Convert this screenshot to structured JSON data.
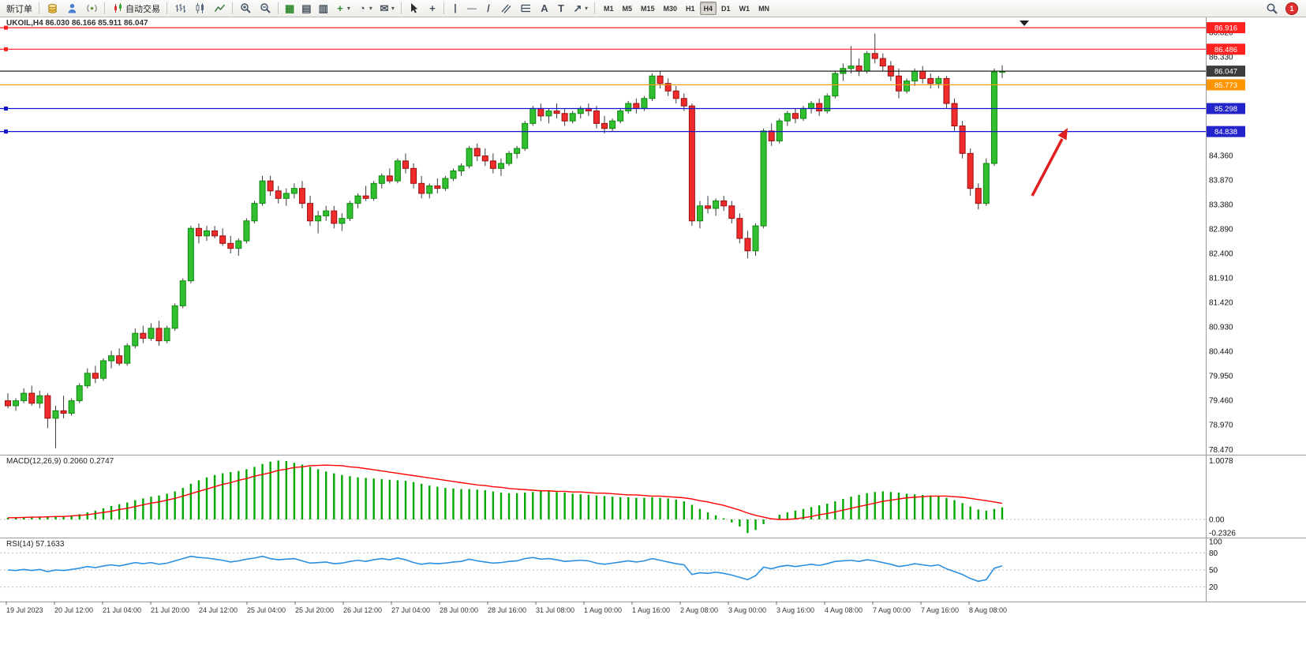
{
  "toolbar": {
    "new_order_label": "新订单",
    "auto_trading_label": "自动交易",
    "timeframes": [
      "M1",
      "M5",
      "M15",
      "M30",
      "H1",
      "H4",
      "D1",
      "W1",
      "MN"
    ],
    "active_timeframe": "H4",
    "notification_count": "1"
  },
  "icons": {
    "tile": "▦",
    "layout_columns": "▤",
    "layout_rows": "▥",
    "add_plus": "+",
    "clock": "◔",
    "mail": "✉",
    "caret": "▾",
    "crosshair": "+",
    "vline": "|",
    "hline": "—",
    "trendline": "/",
    "text_tool": "A",
    "label_tool": "T",
    "arrow_tool": "↗"
  },
  "chart_data": {
    "type": "candlestick",
    "symbol": "UKOIL",
    "period": "H4",
    "symbol_readout": "UKOIL,H4 86.030 86.166 85.911 86.047",
    "ohlc": {
      "open": 86.03,
      "high": 86.166,
      "low": 85.911,
      "close": 86.047
    },
    "colors": {
      "bull": "#2fbf2f",
      "bull_border": "#118811",
      "bear": "#ef2b2b",
      "bear_border": "#9c0f0f",
      "wick": "#3a3a3a",
      "macd_hist": "#00a800",
      "macd_signal": "#ff0000",
      "rsi": "#2a8fe0",
      "arrow": "#e02020"
    },
    "price_axis_ticks": [
      86.82,
      86.33,
      84.36,
      83.87,
      83.38,
      82.89,
      82.4,
      81.91,
      81.42,
      80.93,
      80.44,
      79.95,
      79.46,
      78.97,
      78.47
    ],
    "hlines": [
      {
        "label": "86.916",
        "price": 86.916,
        "color": "#ff2020",
        "badge": "#ff2020",
        "marker": true
      },
      {
        "label": "86.486",
        "price": 86.486,
        "color": "#ff2020",
        "badge": "#ff2020",
        "marker": true
      },
      {
        "label": "86.047",
        "price": 86.047,
        "color": "#222222",
        "badge": "#3c3c3c",
        "marker": false
      },
      {
        "label": "85.773",
        "price": 85.773,
        "color": "#ff9500",
        "badge": "#ff9500",
        "marker": false
      },
      {
        "label": "85.298",
        "price": 85.298,
        "color": "#1414cc",
        "badge": "#2424cc",
        "marker": true
      },
      {
        "label": "84.838",
        "price": 84.838,
        "color": "#1414cc",
        "badge": "#2424cc",
        "marker": true
      }
    ],
    "candles": [
      [
        79.45,
        79.6,
        79.3,
        79.35
      ],
      [
        79.35,
        79.5,
        79.25,
        79.45
      ],
      [
        79.45,
        79.7,
        79.4,
        79.6
      ],
      [
        79.6,
        79.75,
        79.35,
        79.4
      ],
      [
        79.4,
        79.65,
        79.3,
        79.55
      ],
      [
        79.55,
        79.6,
        78.9,
        79.1
      ],
      [
        79.1,
        79.35,
        78.5,
        79.25
      ],
      [
        79.25,
        79.55,
        79.1,
        79.2
      ],
      [
        79.2,
        79.5,
        79.15,
        79.45
      ],
      [
        79.45,
        79.8,
        79.4,
        79.75
      ],
      [
        79.75,
        80.1,
        79.7,
        80.0
      ],
      [
        80.0,
        80.15,
        79.8,
        79.9
      ],
      [
        79.9,
        80.3,
        79.85,
        80.25
      ],
      [
        80.25,
        80.45,
        80.1,
        80.35
      ],
      [
        80.35,
        80.5,
        80.15,
        80.2
      ],
      [
        80.2,
        80.6,
        80.15,
        80.55
      ],
      [
        80.55,
        80.9,
        80.5,
        80.8
      ],
      [
        80.8,
        80.95,
        80.6,
        80.7
      ],
      [
        80.7,
        81.0,
        80.65,
        80.9
      ],
      [
        80.9,
        81.05,
        80.55,
        80.65
      ],
      [
        80.65,
        80.95,
        80.6,
        80.9
      ],
      [
        80.9,
        81.4,
        80.85,
        81.35
      ],
      [
        81.35,
        81.9,
        81.3,
        81.85
      ],
      [
        81.85,
        82.95,
        81.8,
        82.9
      ],
      [
        82.9,
        83.0,
        82.6,
        82.75
      ],
      [
        82.75,
        82.95,
        82.65,
        82.85
      ],
      [
        82.85,
        82.95,
        82.7,
        82.75
      ],
      [
        82.75,
        82.9,
        82.55,
        82.6
      ],
      [
        82.6,
        82.75,
        82.4,
        82.5
      ],
      [
        82.5,
        82.7,
        82.35,
        82.65
      ],
      [
        82.65,
        83.1,
        82.6,
        83.05
      ],
      [
        83.05,
        83.45,
        83.0,
        83.4
      ],
      [
        83.4,
        83.95,
        83.35,
        83.85
      ],
      [
        83.85,
        83.95,
        83.55,
        83.65
      ],
      [
        83.65,
        83.75,
        83.4,
        83.5
      ],
      [
        83.5,
        83.7,
        83.35,
        83.6
      ],
      [
        83.6,
        83.8,
        83.5,
        83.7
      ],
      [
        83.7,
        83.85,
        83.3,
        83.4
      ],
      [
        83.4,
        83.55,
        82.95,
        83.05
      ],
      [
        83.05,
        83.25,
        82.8,
        83.15
      ],
      [
        83.15,
        83.35,
        83.05,
        83.25
      ],
      [
        83.25,
        83.35,
        82.9,
        83.0
      ],
      [
        83.0,
        83.2,
        82.85,
        83.1
      ],
      [
        83.1,
        83.45,
        83.05,
        83.4
      ],
      [
        83.4,
        83.6,
        83.3,
        83.55
      ],
      [
        83.55,
        83.75,
        83.45,
        83.5
      ],
      [
        83.5,
        83.85,
        83.45,
        83.8
      ],
      [
        83.8,
        84.0,
        83.7,
        83.95
      ],
      [
        83.95,
        84.1,
        83.8,
        83.85
      ],
      [
        83.85,
        84.3,
        83.8,
        84.25
      ],
      [
        84.25,
        84.4,
        84.0,
        84.1
      ],
      [
        84.1,
        84.2,
        83.7,
        83.8
      ],
      [
        83.8,
        83.95,
        83.5,
        83.6
      ],
      [
        83.6,
        83.8,
        83.5,
        83.75
      ],
      [
        83.75,
        83.9,
        83.6,
        83.7
      ],
      [
        83.7,
        83.95,
        83.65,
        83.9
      ],
      [
        83.9,
        84.1,
        83.85,
        84.05
      ],
      [
        84.05,
        84.2,
        83.95,
        84.15
      ],
      [
        84.15,
        84.55,
        84.1,
        84.5
      ],
      [
        84.5,
        84.6,
        84.25,
        84.35
      ],
      [
        84.35,
        84.5,
        84.15,
        84.25
      ],
      [
        84.25,
        84.4,
        84.0,
        84.1
      ],
      [
        84.1,
        84.3,
        83.95,
        84.2
      ],
      [
        84.2,
        84.45,
        84.15,
        84.4
      ],
      [
        84.4,
        84.55,
        84.3,
        84.5
      ],
      [
        84.5,
        85.05,
        84.45,
        85.0
      ],
      [
        85.0,
        85.35,
        84.95,
        85.3
      ],
      [
        85.3,
        85.4,
        85.05,
        85.15
      ],
      [
        85.15,
        85.3,
        85.0,
        85.25
      ],
      [
        85.25,
        85.4,
        85.1,
        85.2
      ],
      [
        85.2,
        85.3,
        84.95,
        85.05
      ],
      [
        85.05,
        85.25,
        85.0,
        85.2
      ],
      [
        85.2,
        85.35,
        85.1,
        85.3
      ],
      [
        85.3,
        85.4,
        85.15,
        85.25
      ],
      [
        85.25,
        85.35,
        84.9,
        85.0
      ],
      [
        85.0,
        85.15,
        84.8,
        84.9
      ],
      [
        84.9,
        85.1,
        84.85,
        85.05
      ],
      [
        85.05,
        85.3,
        85.0,
        85.25
      ],
      [
        85.25,
        85.45,
        85.2,
        85.4
      ],
      [
        85.4,
        85.5,
        85.2,
        85.3
      ],
      [
        85.3,
        85.55,
        85.25,
        85.5
      ],
      [
        85.5,
        86.0,
        85.45,
        85.95
      ],
      [
        85.95,
        86.05,
        85.7,
        85.8
      ],
      [
        85.8,
        85.9,
        85.55,
        85.65
      ],
      [
        85.65,
        85.75,
        85.4,
        85.5
      ],
      [
        85.5,
        85.6,
        85.25,
        85.35
      ],
      [
        85.35,
        85.4,
        82.95,
        83.05
      ],
      [
        83.05,
        83.45,
        82.9,
        83.35
      ],
      [
        83.35,
        83.55,
        83.2,
        83.3
      ],
      [
        83.3,
        83.5,
        83.15,
        83.45
      ],
      [
        83.45,
        83.55,
        83.25,
        83.35
      ],
      [
        83.35,
        83.45,
        83.0,
        83.1
      ],
      [
        83.1,
        83.2,
        82.6,
        82.7
      ],
      [
        82.7,
        82.85,
        82.3,
        82.45
      ],
      [
        82.45,
        83.0,
        82.35,
        82.95
      ],
      [
        82.95,
        84.9,
        82.9,
        84.85
      ],
      [
        84.85,
        85.0,
        84.55,
        84.65
      ],
      [
        84.65,
        85.1,
        84.6,
        85.05
      ],
      [
        85.05,
        85.25,
        84.95,
        85.2
      ],
      [
        85.2,
        85.3,
        85.0,
        85.1
      ],
      [
        85.1,
        85.35,
        85.05,
        85.3
      ],
      [
        85.3,
        85.45,
        85.2,
        85.4
      ],
      [
        85.4,
        85.5,
        85.15,
        85.25
      ],
      [
        85.25,
        85.6,
        85.2,
        85.55
      ],
      [
        85.55,
        86.05,
        85.5,
        86.0
      ],
      [
        86.0,
        86.2,
        85.85,
        86.1
      ],
      [
        86.1,
        86.55,
        86.0,
        86.15
      ],
      [
        86.15,
        86.3,
        85.95,
        86.05
      ],
      [
        86.05,
        86.45,
        86.0,
        86.4
      ],
      [
        86.4,
        86.8,
        86.2,
        86.3
      ],
      [
        86.3,
        86.4,
        86.05,
        86.15
      ],
      [
        86.15,
        86.25,
        85.85,
        85.95
      ],
      [
        85.95,
        86.1,
        85.5,
        85.65
      ],
      [
        85.65,
        85.9,
        85.6,
        85.85
      ],
      [
        85.85,
        86.1,
        85.75,
        86.05
      ],
      [
        86.05,
        86.15,
        85.8,
        85.9
      ],
      [
        85.9,
        86.0,
        85.7,
        85.8
      ],
      [
        85.8,
        85.95,
        85.7,
        85.9
      ],
      [
        85.9,
        85.95,
        85.3,
        85.4
      ],
      [
        85.4,
        85.5,
        84.85,
        84.95
      ],
      [
        84.95,
        85.05,
        84.3,
        84.4
      ],
      [
        84.4,
        84.5,
        83.55,
        83.7
      ],
      [
        83.7,
        83.8,
        83.28,
        83.4
      ],
      [
        83.4,
        84.3,
        83.35,
        84.2
      ],
      [
        84.2,
        86.1,
        84.15,
        86.03
      ],
      [
        86.03,
        86.166,
        85.911,
        86.047
      ]
    ],
    "macd": {
      "label": "MACD(12,26,9) 0.2060 0.2747",
      "value": 0.206,
      "signal_value": 0.2747,
      "axis_ticks": [
        "1.0078",
        "0.00",
        "-0.2326"
      ],
      "histogram": [
        0.03,
        0.03,
        0.04,
        0.04,
        0.05,
        0.04,
        0.05,
        0.06,
        0.07,
        0.09,
        0.12,
        0.15,
        0.19,
        0.23,
        0.26,
        0.29,
        0.33,
        0.36,
        0.39,
        0.41,
        0.44,
        0.48,
        0.54,
        0.61,
        0.67,
        0.72,
        0.76,
        0.79,
        0.81,
        0.83,
        0.86,
        0.9,
        0.95,
        0.99,
        1.0078,
        1.0,
        0.97,
        0.94,
        0.9,
        0.86,
        0.82,
        0.79,
        0.76,
        0.74,
        0.72,
        0.71,
        0.7,
        0.69,
        0.68,
        0.67,
        0.66,
        0.64,
        0.61,
        0.58,
        0.56,
        0.54,
        0.53,
        0.52,
        0.52,
        0.51,
        0.5,
        0.48,
        0.46,
        0.45,
        0.45,
        0.46,
        0.47,
        0.48,
        0.48,
        0.47,
        0.46,
        0.44,
        0.43,
        0.42,
        0.41,
        0.4,
        0.39,
        0.38,
        0.38,
        0.37,
        0.37,
        0.38,
        0.37,
        0.36,
        0.34,
        0.31,
        0.25,
        0.18,
        0.12,
        0.07,
        0.02,
        -0.05,
        -0.12,
        -0.2326,
        -0.18,
        -0.08,
        0.02,
        0.08,
        0.12,
        0.15,
        0.18,
        0.21,
        0.24,
        0.27,
        0.31,
        0.35,
        0.39,
        0.42,
        0.45,
        0.47,
        0.48,
        0.47,
        0.46,
        0.44,
        0.43,
        0.42,
        0.41,
        0.4,
        0.37,
        0.33,
        0.28,
        0.22,
        0.17,
        0.15,
        0.18,
        0.206
      ],
      "signal": [
        0.03,
        0.03,
        0.035,
        0.04,
        0.04,
        0.045,
        0.05,
        0.05,
        0.06,
        0.07,
        0.08,
        0.1,
        0.12,
        0.14,
        0.17,
        0.19,
        0.22,
        0.25,
        0.28,
        0.3,
        0.33,
        0.36,
        0.4,
        0.44,
        0.48,
        0.52,
        0.56,
        0.6,
        0.63,
        0.67,
        0.7,
        0.74,
        0.77,
        0.8,
        0.84,
        0.86,
        0.89,
        0.9,
        0.92,
        0.925,
        0.93,
        0.925,
        0.92,
        0.9,
        0.89,
        0.87,
        0.85,
        0.83,
        0.81,
        0.79,
        0.77,
        0.75,
        0.73,
        0.71,
        0.69,
        0.67,
        0.65,
        0.63,
        0.61,
        0.59,
        0.58,
        0.56,
        0.55,
        0.53,
        0.52,
        0.51,
        0.5,
        0.49,
        0.49,
        0.48,
        0.48,
        0.47,
        0.47,
        0.46,
        0.45,
        0.45,
        0.44,
        0.43,
        0.42,
        0.42,
        0.41,
        0.4,
        0.4,
        0.39,
        0.38,
        0.37,
        0.35,
        0.32,
        0.3,
        0.27,
        0.24,
        0.2,
        0.16,
        0.11,
        0.07,
        0.04,
        0.01,
        0.0,
        0.0,
        0.01,
        0.03,
        0.05,
        0.08,
        0.1,
        0.13,
        0.16,
        0.19,
        0.22,
        0.25,
        0.28,
        0.31,
        0.33,
        0.35,
        0.37,
        0.38,
        0.39,
        0.4,
        0.4,
        0.4,
        0.39,
        0.38,
        0.36,
        0.34,
        0.32,
        0.3,
        0.2747
      ]
    },
    "rsi": {
      "label": "RSI(14) 57.1633",
      "value": 57.1633,
      "levels": [
        80,
        50,
        20
      ],
      "axis_ticks": [
        "100",
        "80",
        "50",
        "20"
      ],
      "values": [
        50,
        49,
        51,
        49,
        51,
        47,
        50,
        49,
        51,
        53,
        56,
        54,
        57,
        59,
        57,
        60,
        63,
        61,
        63,
        60,
        62,
        66,
        70,
        74,
        72,
        71,
        69,
        67,
        64,
        66,
        69,
        71,
        74,
        70,
        68,
        69,
        70,
        66,
        62,
        63,
        64,
        61,
        62,
        65,
        67,
        65,
        68,
        70,
        68,
        71,
        68,
        63,
        60,
        62,
        61,
        62,
        64,
        65,
        69,
        66,
        64,
        62,
        63,
        65,
        66,
        70,
        72,
        69,
        70,
        68,
        65,
        66,
        67,
        66,
        62,
        60,
        62,
        64,
        66,
        64,
        66,
        70,
        67,
        64,
        61,
        59,
        42,
        45,
        44,
        46,
        44,
        41,
        37,
        33,
        40,
        55,
        52,
        56,
        58,
        56,
        58,
        60,
        58,
        61,
        65,
        66,
        67,
        65,
        68,
        66,
        63,
        60,
        56,
        58,
        61,
        59,
        57,
        59,
        52,
        47,
        42,
        35,
        30,
        33,
        53,
        57.16
      ]
    },
    "time_axis": [
      "19 Jul 2023",
      "20 Jul 12:00",
      "21 Jul 04:00",
      "21 Jul 20:00",
      "24 Jul 12:00",
      "25 Jul 04:00",
      "25 Jul 20:00",
      "26 Jul 12:00",
      "27 Jul 04:00",
      "28 Jul 00:00",
      "28 Jul 16:00",
      "31 Jul 08:00",
      "1 Aug 00:00",
      "1 Aug 16:00",
      "2 Aug 08:00",
      "3 Aug 00:00",
      "3 Aug 16:00",
      "4 Aug 08:00",
      "7 Aug 00:00",
      "7 Aug 16:00",
      "8 Aug 08:00"
    ]
  }
}
